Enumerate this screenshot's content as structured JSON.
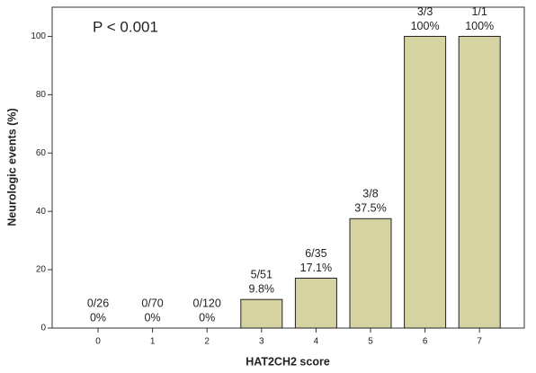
{
  "chart_data": {
    "type": "bar",
    "annotation": "P < 0.001",
    "x_label": "HAT2CH2 score",
    "y_label": "Neurologic events (%)",
    "categories": [
      "0",
      "1",
      "2",
      "3",
      "4",
      "5",
      "6",
      "7"
    ],
    "values": [
      0,
      0,
      0,
      9.8,
      17.1,
      37.5,
      100,
      100
    ],
    "value_labels": [
      "0%",
      "0%",
      "0%",
      "9.8%",
      "17.1%",
      "37.5%",
      "100%",
      "100%"
    ],
    "counts": [
      "0/26",
      "0/70",
      "0/120",
      "5/51",
      "6/35",
      "3/8",
      "3/3",
      "1/1"
    ],
    "color": "#d6d3a2",
    "ylim": [
      0,
      110
    ],
    "yticks": [
      0,
      20,
      40,
      60,
      80,
      100
    ],
    "grid": false
  }
}
